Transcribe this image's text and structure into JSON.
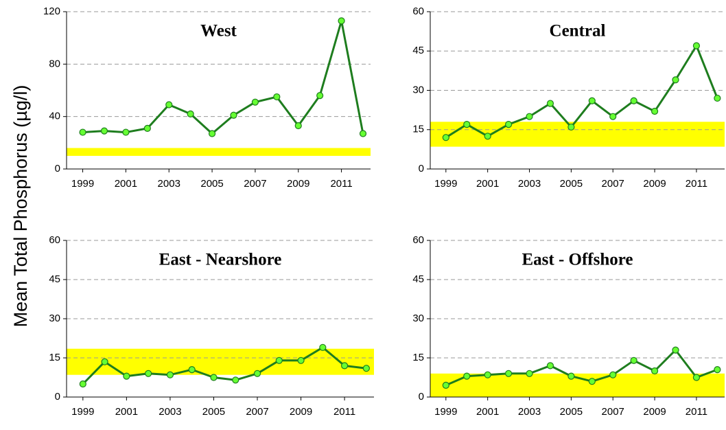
{
  "ylabel": "Mean Total Phosphorus (µg/l)",
  "chart_data": [
    {
      "type": "line",
      "title": "West",
      "x": [
        1999,
        2000,
        2001,
        2002,
        2003,
        2004,
        2005,
        2006,
        2007,
        2008,
        2009,
        2010,
        2011,
        2012
      ],
      "values": [
        28,
        29,
        28,
        31,
        49,
        42,
        27,
        41,
        51,
        55,
        33,
        56,
        113,
        27
      ],
      "color": "#1e7d1e",
      "marker_color": "#66ff33",
      "band": [
        10,
        16
      ],
      "band_color": "#ffff00",
      "xlim": [
        1998.25,
        2012.35
      ],
      "xticks": [
        1999,
        2001,
        2003,
        2005,
        2007,
        2009,
        2011
      ],
      "ylim": [
        0,
        120
      ],
      "yticks": [
        0,
        40,
        80,
        120
      ],
      "grid": true
    },
    {
      "type": "line",
      "title": "Central",
      "x": [
        1999,
        2000,
        2001,
        2002,
        2003,
        2004,
        2005,
        2006,
        2007,
        2008,
        2009,
        2010,
        2011,
        2012
      ],
      "values": [
        12,
        17,
        12.5,
        17,
        20,
        25,
        16,
        26,
        20,
        26,
        22,
        34,
        47,
        27
      ],
      "color": "#1e7d1e",
      "marker_color": "#66ff33",
      "band": [
        8.5,
        18
      ],
      "band_color": "#ffff00",
      "xlim": [
        1998.25,
        2012.35
      ],
      "xticks": [
        1999,
        2001,
        2003,
        2005,
        2007,
        2009,
        2011
      ],
      "ylim": [
        0,
        60
      ],
      "yticks": [
        0,
        15,
        30,
        45,
        60
      ],
      "grid": true
    },
    {
      "type": "line",
      "title": "East - Nearshore",
      "x": [
        1999,
        2000,
        2001,
        2002,
        2003,
        2004,
        2005,
        2006,
        2007,
        2008,
        2009,
        2010,
        2011,
        2012
      ],
      "values": [
        5,
        13.5,
        8,
        9,
        8.5,
        10.5,
        7.5,
        6.5,
        9,
        14,
        14,
        19,
        12,
        11
      ],
      "color": "#1e7d1e",
      "marker_color": "#66ff33",
      "band": [
        8.5,
        18.5
      ],
      "band_color": "#ffff00",
      "xlim": [
        1998.25,
        2012.35
      ],
      "xticks": [
        1999,
        2001,
        2003,
        2005,
        2007,
        2009,
        2011
      ],
      "ylim": [
        0,
        60
      ],
      "yticks": [
        0,
        15,
        30,
        45,
        60
      ],
      "grid": true
    },
    {
      "type": "line",
      "title": "East - Offshore",
      "x": [
        1999,
        2000,
        2001,
        2002,
        2003,
        2004,
        2005,
        2006,
        2007,
        2008,
        2009,
        2010,
        2011,
        2012
      ],
      "values": [
        4.5,
        8,
        8.5,
        9,
        9,
        12,
        8,
        6,
        8.5,
        14,
        10,
        18,
        7.5,
        10.5
      ],
      "color": "#1e7d1e",
      "marker_color": "#66ff33",
      "band": [
        0,
        9
      ],
      "band_color": "#ffff00",
      "xlim": [
        1998.25,
        2012.35
      ],
      "xticks": [
        1999,
        2001,
        2003,
        2005,
        2007,
        2009,
        2011
      ],
      "ylim": [
        0,
        60
      ],
      "yticks": [
        0,
        15,
        30,
        45,
        60
      ],
      "grid": true
    }
  ]
}
